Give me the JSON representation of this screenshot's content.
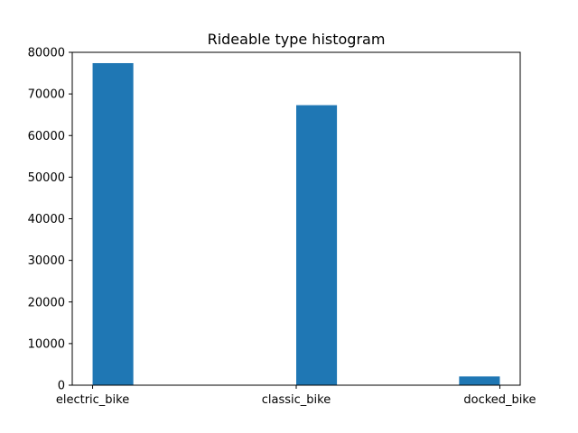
{
  "chart_data": {
    "type": "bar",
    "title": "Rideable type histogram",
    "xlabel": "",
    "ylabel": "",
    "categories": [
      "electric_bike",
      "classic_bike",
      "docked_bike"
    ],
    "values": [
      77400,
      67300,
      2100
    ],
    "ylim": [
      0,
      80000
    ],
    "yticks": [
      "0",
      "10000",
      "20000",
      "30000",
      "40000",
      "50000",
      "60000",
      "70000",
      "80000"
    ],
    "grid": false,
    "legend": "none",
    "colors": {
      "bar": "#1f77b4",
      "axes": "#000000",
      "background": "#ffffff"
    }
  }
}
